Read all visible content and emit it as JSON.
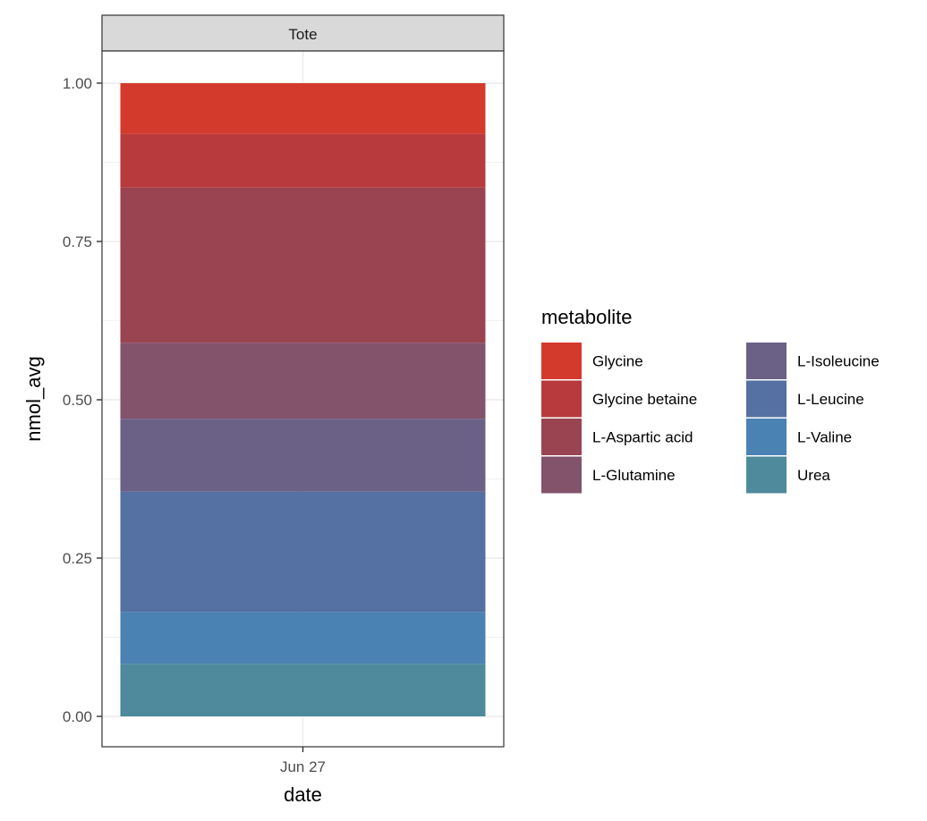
{
  "chart_data": {
    "type": "bar",
    "stacked": true,
    "position": "fill",
    "facet": "Tote",
    "categories": [
      "Jun 27"
    ],
    "xlabel": "date",
    "ylabel": "nmol_avg",
    "ylim": [
      0,
      1
    ],
    "yticks": [
      "0.00",
      "0.25",
      "0.50",
      "0.75",
      "1.00"
    ],
    "grid": true,
    "legend_title": "metabolite",
    "legend_position": "right",
    "legend_columns": 2,
    "series": [
      {
        "name": "Glycine",
        "color": "#d43a2c",
        "values": [
          0.08
        ]
      },
      {
        "name": "Glycine betaine",
        "color": "#b83a3d",
        "values": [
          0.085
        ]
      },
      {
        "name": "L-Aspartic acid",
        "color": "#9a4452",
        "values": [
          0.245
        ]
      },
      {
        "name": "L-Glutamine",
        "color": "#83526b",
        "values": [
          0.12
        ]
      },
      {
        "name": "L-Isoleucine",
        "color": "#6b6186",
        "values": [
          0.115
        ]
      },
      {
        "name": "L-Leucine",
        "color": "#5570a2",
        "values": [
          0.19
        ]
      },
      {
        "name": "L-Valine",
        "color": "#4a82b3",
        "values": [
          0.082
        ]
      },
      {
        "name": "Urea",
        "color": "#4e8a9c",
        "values": [
          0.083
        ]
      }
    ]
  }
}
